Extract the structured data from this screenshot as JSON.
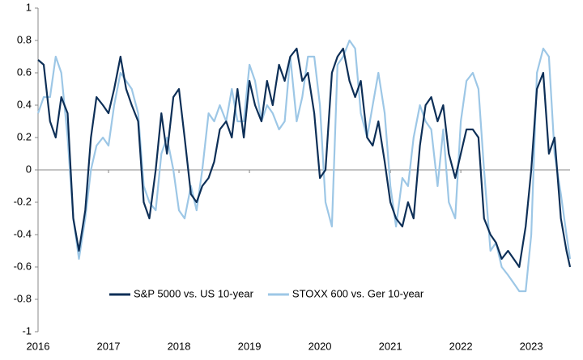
{
  "chart_data": {
    "type": "line",
    "x": [
      2016.0,
      2016.08,
      2016.17,
      2016.25,
      2016.33,
      2016.42,
      2016.5,
      2016.58,
      2016.67,
      2016.75,
      2016.83,
      2016.92,
      2017.0,
      2017.08,
      2017.17,
      2017.25,
      2017.33,
      2017.42,
      2017.5,
      2017.58,
      2017.67,
      2017.75,
      2017.83,
      2017.92,
      2018.0,
      2018.08,
      2018.17,
      2018.25,
      2018.33,
      2018.42,
      2018.5,
      2018.58,
      2018.67,
      2018.75,
      2018.83,
      2018.92,
      2019.0,
      2019.08,
      2019.17,
      2019.25,
      2019.33,
      2019.42,
      2019.5,
      2019.58,
      2019.67,
      2019.75,
      2019.83,
      2019.92,
      2020.0,
      2020.08,
      2020.17,
      2020.25,
      2020.33,
      2020.42,
      2020.5,
      2020.58,
      2020.67,
      2020.75,
      2020.83,
      2020.92,
      2021.0,
      2021.08,
      2021.17,
      2021.25,
      2021.33,
      2021.42,
      2021.5,
      2021.58,
      2021.67,
      2021.75,
      2021.83,
      2021.92,
      2022.0,
      2022.08,
      2022.17,
      2022.25,
      2022.33,
      2022.42,
      2022.5,
      2022.58,
      2022.67,
      2022.75,
      2022.83,
      2022.92,
      2023.0,
      2023.08,
      2023.17,
      2023.25,
      2023.33,
      2023.42,
      2023.5,
      2023.55
    ],
    "series": [
      {
        "name": "S&P 5000 vs. US 10-year",
        "color": "#0d2f57",
        "values": [
          0.68,
          0.65,
          0.3,
          0.2,
          0.45,
          0.35,
          -0.3,
          -0.5,
          -0.25,
          0.2,
          0.45,
          0.4,
          0.35,
          0.5,
          0.7,
          0.5,
          0.4,
          0.3,
          -0.2,
          -0.3,
          0.0,
          0.35,
          0.1,
          0.45,
          0.5,
          0.2,
          -0.15,
          -0.2,
          -0.1,
          -0.05,
          0.05,
          0.25,
          0.3,
          0.2,
          0.5,
          0.2,
          0.55,
          0.4,
          0.3,
          0.55,
          0.4,
          0.65,
          0.55,
          0.7,
          0.75,
          0.55,
          0.6,
          0.35,
          -0.05,
          0.0,
          0.6,
          0.7,
          0.75,
          0.55,
          0.45,
          0.55,
          0.2,
          0.15,
          0.3,
          0.05,
          -0.2,
          -0.3,
          -0.35,
          -0.2,
          -0.3,
          0.15,
          0.4,
          0.45,
          0.3,
          0.4,
          0.1,
          -0.05,
          0.1,
          0.25,
          0.25,
          0.2,
          -0.3,
          -0.4,
          -0.45,
          -0.55,
          -0.5,
          -0.55,
          -0.6,
          -0.35,
          0.0,
          0.5,
          0.6,
          0.1,
          0.2,
          -0.3,
          -0.5,
          -0.6
        ]
      },
      {
        "name": "STOXX 600 vs. Ger 10-year",
        "color": "#9dc7e6",
        "values": [
          0.35,
          0.45,
          0.45,
          0.7,
          0.6,
          0.2,
          -0.3,
          -0.55,
          -0.3,
          0.0,
          0.15,
          0.2,
          0.15,
          0.4,
          0.6,
          0.55,
          0.5,
          0.35,
          -0.1,
          -0.2,
          -0.25,
          0.1,
          0.2,
          0.0,
          -0.25,
          -0.3,
          -0.1,
          -0.25,
          0.0,
          0.35,
          0.3,
          0.4,
          0.3,
          0.5,
          0.3,
          0.3,
          0.65,
          0.55,
          0.3,
          0.4,
          0.35,
          0.25,
          0.3,
          0.7,
          0.3,
          0.45,
          0.7,
          0.7,
          0.4,
          -0.2,
          -0.35,
          0.65,
          0.7,
          0.8,
          0.75,
          0.35,
          0.2,
          0.4,
          0.6,
          0.35,
          -0.1,
          -0.35,
          -0.05,
          -0.1,
          0.2,
          0.4,
          0.3,
          0.25,
          -0.1,
          0.25,
          -0.2,
          -0.3,
          0.3,
          0.55,
          0.6,
          0.5,
          0.0,
          -0.5,
          -0.45,
          -0.6,
          -0.65,
          -0.7,
          -0.75,
          -0.75,
          -0.4,
          0.6,
          0.75,
          0.7,
          0.1,
          -0.15,
          -0.4,
          -0.55
        ]
      }
    ],
    "xlim": [
      2016,
      2023.55
    ],
    "xticks": [
      2016,
      2017,
      2018,
      2019,
      2020,
      2021,
      2022,
      2023
    ],
    "ylim": [
      -1,
      1
    ],
    "yticks": [
      -1,
      -0.8,
      -0.6,
      -0.4,
      -0.2,
      0,
      0.2,
      0.4,
      0.6,
      0.8,
      1
    ],
    "grid": false,
    "legend": "bottom"
  }
}
